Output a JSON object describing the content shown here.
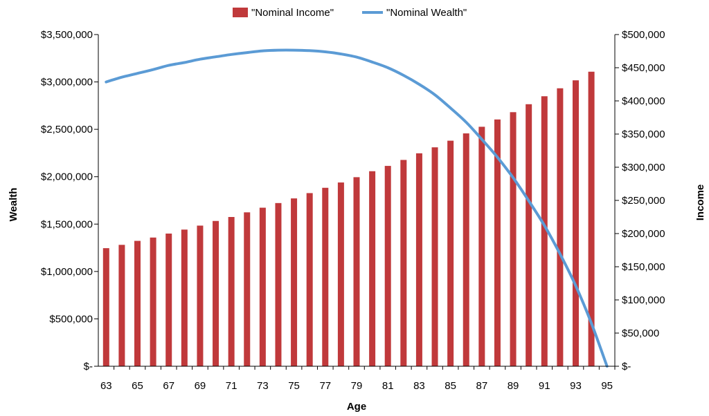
{
  "chart_data": {
    "type": "bar+line",
    "legend": {
      "position": "top",
      "items": [
        {
          "label": "\"Nominal Income\"",
          "kind": "bar",
          "color": "#c0393b"
        },
        {
          "label": "\"Nominal Wealth\"",
          "kind": "line",
          "color": "#5b9bd5"
        }
      ]
    },
    "xlabel": "Age",
    "ylabel_left": "Wealth",
    "ylabel_right": "Income",
    "x": [
      63,
      64,
      65,
      66,
      67,
      68,
      69,
      70,
      71,
      72,
      73,
      74,
      75,
      76,
      77,
      78,
      79,
      80,
      81,
      82,
      83,
      84,
      85,
      86,
      87,
      88,
      89,
      90,
      91,
      92,
      93,
      94,
      95
    ],
    "x_tick_labels": [
      "63",
      "65",
      "67",
      "69",
      "71",
      "73",
      "75",
      "77",
      "79",
      "81",
      "83",
      "85",
      "87",
      "89",
      "91",
      "93",
      "95"
    ],
    "y_left": {
      "min": 0,
      "max": 3500000,
      "tick_labels": [
        "$-",
        "$500,000",
        "$1,000,000",
        "$1,500,000",
        "$2,000,000",
        "$2,500,000",
        "$3,000,000",
        "$3,500,000"
      ]
    },
    "y_right": {
      "min": 0,
      "max": 500000,
      "tick_labels": [
        "$-",
        "$50,000",
        "$100,000",
        "$150,000",
        "$200,000",
        "$250,000",
        "$300,000",
        "$350,000",
        "$400,000",
        "$450,000",
        "$500,000"
      ]
    },
    "series": [
      {
        "name": "\"Nominal Income\"",
        "type": "bar",
        "axis": "right",
        "x": [
          63,
          64,
          65,
          66,
          67,
          68,
          69,
          70,
          71,
          72,
          73,
          74,
          75,
          76,
          77,
          78,
          79,
          80,
          81,
          82,
          83,
          84,
          85,
          86,
          87,
          88,
          89,
          90,
          91,
          92,
          93,
          94
        ],
        "values": [
          178000,
          183000,
          189000,
          194000,
          200000,
          206000,
          212000,
          219000,
          225000,
          232000,
          239000,
          246000,
          253000,
          261000,
          269000,
          277000,
          285000,
          294000,
          302000,
          311000,
          321000,
          330000,
          340000,
          351000,
          361000,
          372000,
          383000,
          395000,
          407000,
          419000,
          431000,
          444000
        ]
      },
      {
        "name": "\"Nominal Wealth\"",
        "type": "line",
        "axis": "left",
        "x": [
          63,
          64,
          65,
          66,
          67,
          68,
          69,
          70,
          71,
          72,
          73,
          74,
          75,
          76,
          77,
          78,
          79,
          80,
          81,
          82,
          83,
          84,
          85,
          86,
          87,
          88,
          89,
          90,
          91,
          92,
          93,
          94,
          95
        ],
        "values": [
          3000000,
          3050000,
          3090000,
          3130000,
          3175000,
          3205000,
          3240000,
          3265000,
          3290000,
          3310000,
          3328000,
          3335000,
          3335000,
          3330000,
          3318000,
          3295000,
          3262000,
          3210000,
          3150000,
          3070000,
          2975000,
          2865000,
          2725000,
          2575000,
          2395000,
          2205000,
          1990000,
          1745000,
          1485000,
          1185000,
          850000,
          455000,
          0
        ]
      }
    ]
  }
}
